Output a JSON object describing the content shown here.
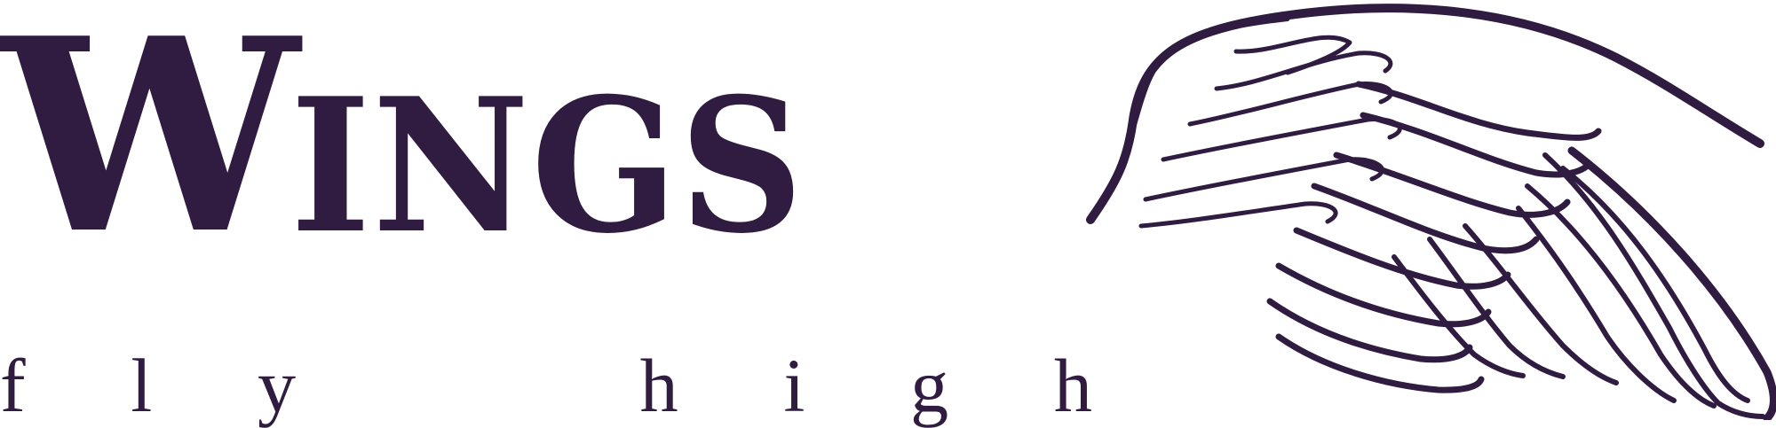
{
  "logo": {
    "wordmark": {
      "first_letter": "W",
      "rest": "INGS"
    },
    "tagline": [
      "f",
      "l",
      "y",
      "h",
      "i",
      "g",
      "h"
    ],
    "colors": {
      "primary": "#2f1c40",
      "background": "#ffffff"
    },
    "icon": "wing-icon"
  }
}
